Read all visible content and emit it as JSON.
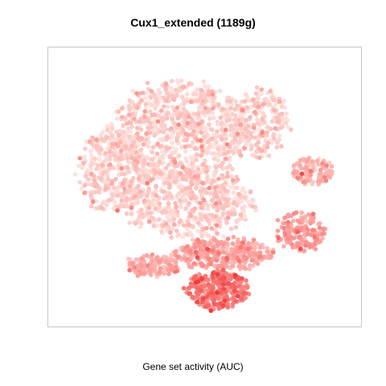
{
  "chart_data": {
    "type": "scatter",
    "title": "Cux1_extended (1189g)",
    "xlabel": "Gene set activity (AUC)",
    "ylabel": "",
    "grid": false,
    "legend": "none",
    "color_scale": {
      "low": "#fde2de",
      "mid": "#fb9b97",
      "high": "#ef3b3b"
    },
    "description_of_density": "Two-dimensional embedding of cells colored by gene set activity; values are relative embedding coordinates and activity on 0-1 scale.",
    "clusters": [
      {
        "cx": 0.42,
        "cy": 0.7,
        "rx": 0.22,
        "ry": 0.18,
        "n": 900,
        "activity": 0.08
      },
      {
        "cx": 0.2,
        "cy": 0.56,
        "rx": 0.11,
        "ry": 0.15,
        "n": 350,
        "activity": 0.08
      },
      {
        "cx": 0.45,
        "cy": 0.45,
        "rx": 0.21,
        "ry": 0.13,
        "n": 600,
        "activity": 0.09
      },
      {
        "cx": 0.68,
        "cy": 0.73,
        "rx": 0.09,
        "ry": 0.12,
        "n": 220,
        "activity": 0.1
      },
      {
        "cx": 0.84,
        "cy": 0.56,
        "rx": 0.07,
        "ry": 0.05,
        "n": 110,
        "activity": 0.28
      },
      {
        "cx": 0.8,
        "cy": 0.34,
        "rx": 0.08,
        "ry": 0.07,
        "n": 160,
        "activity": 0.42
      },
      {
        "cx": 0.56,
        "cy": 0.26,
        "rx": 0.16,
        "ry": 0.06,
        "n": 330,
        "activity": 0.38
      },
      {
        "cx": 0.33,
        "cy": 0.22,
        "rx": 0.09,
        "ry": 0.04,
        "n": 140,
        "activity": 0.32
      },
      {
        "cx": 0.54,
        "cy": 0.13,
        "rx": 0.1,
        "ry": 0.07,
        "n": 320,
        "activity": 0.62
      }
    ]
  }
}
